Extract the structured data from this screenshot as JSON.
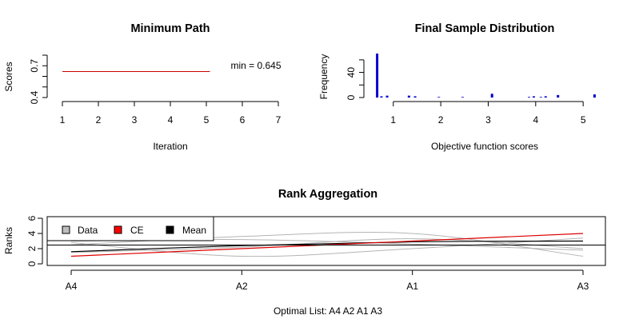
{
  "colors": {
    "axis": "#000000",
    "min_path_line": "#cc0000",
    "histogram_bars": "#0000cc",
    "ce_line": "#dd0000",
    "data_lines": "#b4b4b4",
    "mean_line": "#000000",
    "legend_data_fill": "#bebebe",
    "legend_ce_fill": "#ff0000",
    "legend_mean_fill": "#000000"
  },
  "chart_data": [
    {
      "type": "line",
      "title": "Minimum Path",
      "xlabel": "Iteration",
      "ylabel": "Scores",
      "xlim": [
        1,
        7
      ],
      "ylim": [
        0.4,
        0.8
      ],
      "xticks": [
        "1",
        "2",
        "3",
        "4",
        "5",
        "6",
        "7"
      ],
      "yticks": [
        "0.4",
        "0.7"
      ],
      "x": [
        1,
        5.1
      ],
      "y": [
        0.645,
        0.645
      ],
      "annotation": "min = 0.645",
      "grid": false
    },
    {
      "type": "bar",
      "title": "Final Sample Distribution",
      "xlabel": "Objective function scores",
      "ylabel": "Frequency",
      "xlim": [
        0.65,
        5.25
      ],
      "ylim": [
        0,
        70
      ],
      "xticks": [
        "1",
        "2",
        "3",
        "4",
        "5"
      ],
      "yticks": [
        "0",
        "40"
      ],
      "x": [
        0.66,
        0.75,
        0.87,
        1.33,
        1.46,
        1.96,
        2.46,
        3.08,
        3.86,
        3.96,
        4.11,
        4.21,
        4.47,
        5.24
      ],
      "values": [
        70,
        2,
        3,
        3,
        2,
        1,
        1,
        6,
        1,
        2,
        1,
        2,
        4,
        5
      ],
      "grid": false
    },
    {
      "type": "line",
      "title": "Rank Aggregation",
      "xlabel": "Optimal List: A4 A2 A1 A3",
      "ylabel": "Ranks",
      "categories": [
        "A4",
        "A2",
        "A1",
        "A3"
      ],
      "ylim": [
        0,
        6
      ],
      "yticks": [
        "0",
        "2",
        "4",
        "6"
      ],
      "legend_position": "top-left",
      "legend": [
        "Data",
        "CE",
        "Mean"
      ],
      "series": [
        {
          "name": "CE",
          "values": [
            1,
            2,
            3,
            4
          ]
        },
        {
          "name": "Mean",
          "values": [
            1.6,
            2.4,
            2.9,
            3.0
          ]
        },
        {
          "name": "Data",
          "values": [
            2.5,
            3.6,
            4.0,
            1.0
          ]
        },
        {
          "name": "Data",
          "values": [
            2.8,
            1.0,
            2.0,
            3.4
          ]
        },
        {
          "name": "Data",
          "values": [
            1.5,
            2.2,
            3.3,
            2.0
          ]
        },
        {
          "name": "Data",
          "values": [
            3.0,
            3.2,
            2.6,
            1.8
          ]
        }
      ],
      "grid": false
    }
  ]
}
